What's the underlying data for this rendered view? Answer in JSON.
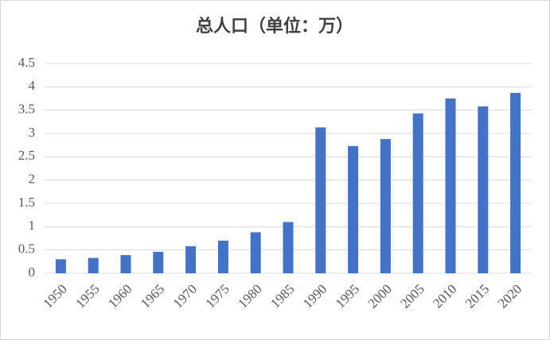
{
  "chart_data": {
    "type": "bar",
    "title": "总人口（单位：万）",
    "categories": [
      "1950",
      "1955",
      "1960",
      "1965",
      "1970",
      "1975",
      "1980",
      "1985",
      "1990",
      "1995",
      "2000",
      "2005",
      "2010",
      "2015",
      "2020"
    ],
    "values": [
      0.3,
      0.33,
      0.39,
      0.46,
      0.58,
      0.7,
      0.88,
      1.1,
      3.13,
      2.73,
      2.88,
      3.43,
      3.75,
      3.58,
      3.87
    ],
    "color": "#4472c4",
    "ylim": [
      0,
      4.5
    ],
    "yticks": [
      0,
      0.5,
      1,
      1.5,
      2,
      2.5,
      3,
      3.5,
      4,
      4.5
    ],
    "grid": true
  }
}
